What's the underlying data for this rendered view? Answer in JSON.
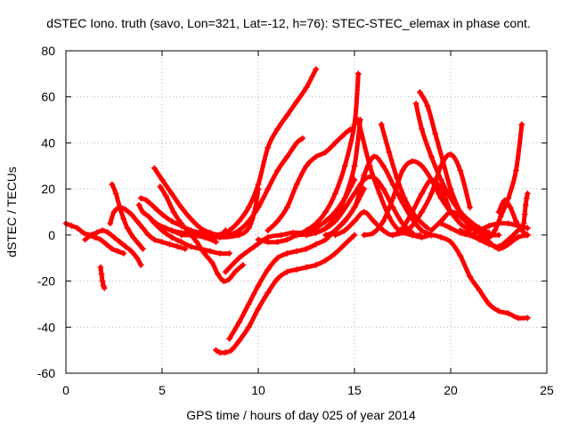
{
  "chart_data": {
    "type": "line",
    "title": "dSTEC Iono. truth (savo, Lon=321, Lat=-12, h=76): STEC-STEC_elemax in phase cont.",
    "xlabel": "GPS time / hours of day 025 of year 2014",
    "ylabel": "dSTEC  / TECUs",
    "xlim": [
      0,
      25
    ],
    "ylim": [
      -60,
      80
    ],
    "xticks": [
      0,
      5,
      10,
      15,
      20,
      25
    ],
    "yticks": [
      -60,
      -40,
      -20,
      0,
      20,
      40,
      60,
      80
    ],
    "grid": true,
    "legend": "none",
    "marker": "+",
    "color": "#ff0000",
    "series": [
      {
        "x": [
          0.0,
          0.3,
          0.6,
          0.9,
          1.2,
          1.5,
          1.8,
          2.1,
          2.4,
          2.7,
          3.0
        ],
        "y": [
          5,
          4,
          3,
          1,
          0,
          -1,
          -2,
          -4,
          -6,
          -7,
          -8
        ]
      },
      {
        "x": [
          1.8,
          1.85,
          1.9,
          1.95,
          2.0
        ],
        "y": [
          -14,
          -17,
          -20,
          -22,
          -23
        ]
      },
      {
        "x": [
          1.0,
          1.3,
          1.6,
          1.9,
          2.2,
          2.5,
          2.8,
          3.1,
          3.4,
          3.7,
          3.9
        ],
        "y": [
          -2,
          0,
          1,
          2,
          1,
          -1,
          -3,
          -5,
          -7,
          -10,
          -13
        ]
      },
      {
        "x": [
          2.3,
          2.5,
          2.8,
          3.1,
          3.4,
          3.7,
          4.0,
          4.3,
          4.6,
          5.0,
          5.4,
          5.8,
          6.2
        ],
        "y": [
          5,
          10,
          12,
          11,
          9,
          6,
          3,
          0,
          -2,
          -3,
          -4,
          -5,
          -6
        ]
      },
      {
        "x": [
          2.4,
          2.6,
          2.8,
          3.0,
          3.2,
          3.5,
          3.8,
          4.0
        ],
        "y": [
          22,
          18,
          12,
          7,
          3,
          -1,
          -4,
          -6
        ]
      },
      {
        "x": [
          3.9,
          4.2,
          4.6,
          5.0,
          5.5,
          6.0,
          6.5,
          7.0,
          7.5,
          8.0,
          8.3
        ],
        "y": [
          16,
          15,
          12,
          9,
          6,
          4,
          2,
          1,
          0,
          0,
          2
        ]
      },
      {
        "x": [
          3.8,
          4.0,
          4.3,
          4.7,
          5.2,
          5.8,
          6.5,
          7.2,
          7.8
        ],
        "y": [
          13,
          10,
          8,
          5,
          3,
          1,
          0,
          -1,
          -3
        ]
      },
      {
        "x": [
          4.6,
          5.0,
          5.5,
          6.0,
          6.5,
          7.0,
          7.5,
          8.0,
          8.5,
          9.0
        ],
        "y": [
          29,
          24,
          18,
          12,
          7,
          3,
          1,
          0,
          0,
          1
        ]
      },
      {
        "x": [
          4.9,
          5.2,
          5.6,
          6.0,
          6.4,
          6.8,
          7.2,
          7.6,
          7.9,
          8.2,
          8.5,
          8.8,
          9.2
        ],
        "y": [
          21,
          17,
          10,
          5,
          1,
          -3,
          -8,
          -12,
          -17,
          -20,
          -19,
          -16,
          -13
        ]
      },
      {
        "x": [
          4.5,
          5.0,
          5.5,
          6.0,
          6.5,
          7.0,
          7.5,
          8.0,
          8.5
        ],
        "y": [
          6,
          2,
          -1,
          -3,
          -5,
          -6,
          -7,
          -8,
          -8
        ]
      },
      {
        "x": [
          5.5,
          6.0,
          7.0,
          8.0,
          9.0,
          9.5,
          9.8,
          10.0
        ],
        "y": [
          2,
          1,
          0,
          -1,
          0,
          3,
          10,
          20
        ]
      },
      {
        "x": [
          7.8,
          8.0,
          8.3,
          8.6,
          9.0,
          9.5,
          10.0,
          10.5,
          11.0,
          11.5,
          12.0,
          12.5,
          13.0,
          13.5,
          14.0,
          14.5,
          15.0
        ],
        "y": [
          -50,
          -51,
          -51,
          -50,
          -46,
          -40,
          -32,
          -25,
          -19,
          -16,
          -15,
          -14,
          -13,
          -11,
          -8,
          -4,
          0
        ]
      },
      {
        "x": [
          8.5,
          9.0,
          9.5,
          10.0,
          10.5,
          11.0,
          11.5,
          12.0,
          12.5,
          13.0,
          13.5,
          14.0,
          14.5,
          15.0,
          15.5
        ],
        "y": [
          -45,
          -38,
          -30,
          -22,
          -15,
          -10,
          -8,
          -7,
          -6,
          -4,
          -2,
          2,
          6,
          12,
          20
        ]
      },
      {
        "x": [
          8.3,
          9.0,
          9.8,
          10.5,
          11.2,
          11.8,
          12.5,
          13.0,
          13.5,
          14.0,
          14.5,
          15.0
        ],
        "y": [
          -16,
          -10,
          -5,
          -1,
          0,
          1,
          1,
          3,
          6,
          10,
          16,
          24
        ]
      },
      {
        "x": [
          6.0,
          7.0,
          8.0,
          8.5,
          9.0,
          9.5,
          10.0,
          10.5,
          11.0,
          11.5,
          12.0,
          12.5,
          13.0
        ],
        "y": [
          0,
          0,
          0,
          2,
          6,
          12,
          22,
          38,
          46,
          52,
          58,
          64,
          72
        ]
      },
      {
        "x": [
          8.5,
          9.0,
          9.5,
          10.0,
          10.5,
          11.0,
          11.5,
          12.0,
          12.3
        ],
        "y": [
          0,
          2,
          6,
          12,
          20,
          28,
          34,
          40,
          42
        ]
      },
      {
        "x": [
          10.5,
          11.0,
          11.5,
          12.0,
          12.5,
          13.0,
          13.5,
          14.0,
          14.5,
          14.8
        ],
        "y": [
          2,
          6,
          12,
          22,
          30,
          34,
          36,
          40,
          44,
          46
        ]
      },
      {
        "x": [
          10.0,
          10.5,
          11.0,
          11.5,
          12.0,
          12.5,
          13.0,
          13.5,
          14.0,
          14.5,
          15.0,
          15.2
        ],
        "y": [
          -2,
          -3,
          -3,
          -2,
          0,
          2,
          5,
          10,
          18,
          30,
          48,
          70
        ]
      },
      {
        "x": [
          12.5,
          13.0,
          13.5,
          14.0,
          14.5,
          15.0,
          15.3
        ],
        "y": [
          0,
          1,
          3,
          8,
          16,
          30,
          50
        ]
      },
      {
        "x": [
          12.0,
          13.0,
          14.0,
          15.0,
          15.5,
          16.0,
          16.5,
          17.0,
          17.5,
          18.0
        ],
        "y": [
          0,
          1,
          6,
          18,
          24,
          25,
          20,
          12,
          5,
          1
        ]
      },
      {
        "x": [
          13.5,
          14.0,
          15.0,
          15.5,
          16.0,
          16.5,
          17.0,
          17.5,
          18.0,
          18.5,
          19.0
        ],
        "y": [
          0,
          2,
          12,
          26,
          34,
          30,
          22,
          14,
          7,
          2,
          0
        ]
      },
      {
        "x": [
          14.0,
          14.5,
          15.0,
          15.5,
          16.0,
          16.5,
          17.0,
          17.5,
          18.0,
          18.5,
          19.0,
          19.5,
          20.0
        ],
        "y": [
          0,
          2,
          6,
          10,
          6,
          2,
          0,
          3,
          10,
          18,
          24,
          20,
          10
        ]
      },
      {
        "x": [
          15.2,
          15.8,
          16.3,
          16.8,
          17.2,
          17.6,
          18.0,
          18.4
        ],
        "y": [
          50,
          30,
          18,
          8,
          3,
          1,
          0,
          0
        ]
      },
      {
        "x": [
          15.5,
          16.0,
          16.5,
          17.0,
          17.5,
          18.0,
          18.5,
          19.0,
          19.5,
          20.0,
          20.5,
          21.0
        ],
        "y": [
          0,
          1,
          6,
          16,
          28,
          32,
          30,
          24,
          16,
          10,
          5,
          2
        ]
      },
      {
        "x": [
          16.4,
          16.8,
          17.2,
          17.6,
          18.0,
          18.4,
          18.8
        ],
        "y": [
          48,
          36,
          25,
          16,
          10,
          6,
          3
        ]
      },
      {
        "x": [
          17.0,
          17.5,
          18.0,
          18.5,
          19.0,
          19.5,
          20.0,
          20.5,
          21.0
        ],
        "y": [
          0,
          1,
          4,
          10,
          18,
          30,
          35,
          28,
          12
        ]
      },
      {
        "x": [
          18.2,
          18.5,
          19.0,
          19.5,
          20.0,
          20.5,
          21.0,
          21.5,
          22.0
        ],
        "y": [
          57,
          46,
          34,
          24,
          16,
          10,
          6,
          3,
          1
        ]
      },
      {
        "x": [
          18.4,
          18.8,
          19.2,
          19.6,
          20.0,
          20.5,
          21.0,
          21.5,
          22.0,
          22.5
        ],
        "y": [
          62,
          56,
          44,
          32,
          20,
          10,
          4,
          1,
          0,
          0
        ]
      },
      {
        "x": [
          19.5,
          20.0,
          20.5,
          21.0,
          21.5,
          22.0,
          22.5,
          23.0,
          23.5,
          24.0
        ],
        "y": [
          5,
          3,
          1,
          0,
          2,
          4,
          5,
          5,
          4,
          3
        ]
      },
      {
        "x": [
          19.0,
          19.5,
          20.0,
          20.5,
          21.0,
          21.5,
          22.0,
          22.5,
          23.0,
          23.5,
          24.0
        ],
        "y": [
          2,
          6,
          10,
          8,
          4,
          1,
          -3,
          -6,
          -4,
          -1,
          0
        ]
      },
      {
        "x": [
          20.5,
          21.0,
          21.5,
          22.0,
          22.5,
          23.0,
          23.5
        ],
        "y": [
          2,
          0,
          -2,
          -4,
          -5,
          -2,
          2
        ]
      },
      {
        "x": [
          21.0,
          21.5,
          22.0,
          22.3,
          22.6,
          23.0,
          23.4,
          23.7
        ],
        "y": [
          0,
          -1,
          -1,
          2,
          8,
          16,
          28,
          48
        ]
      },
      {
        "x": [
          22.5,
          22.8,
          23.1,
          23.4,
          23.7,
          24.0
        ],
        "y": [
          10,
          15,
          12,
          6,
          2,
          0
        ]
      },
      {
        "x": [
          23.8,
          23.85,
          23.9,
          23.95,
          24.0
        ],
        "y": [
          5,
          9,
          13,
          16,
          18
        ]
      },
      {
        "x": [
          18.0,
          18.5,
          19.0,
          19.5,
          20.0,
          20.5,
          21.0,
          21.5,
          22.0,
          22.5,
          23.0,
          23.5,
          24.0
        ],
        "y": [
          0,
          -1,
          0,
          -1,
          -3,
          -9,
          -18,
          -24,
          -30,
          -33,
          -34,
          -36,
          -36
        ]
      }
    ]
  }
}
